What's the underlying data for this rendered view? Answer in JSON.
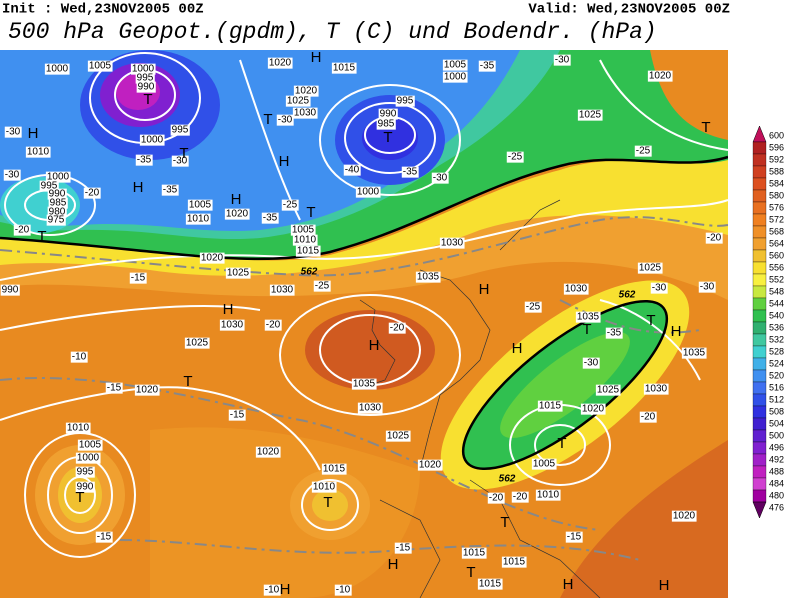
{
  "header": {
    "init": "Init : Wed,23NOV2005 00Z",
    "valid": "Valid: Wed,23NOV2005 00Z",
    "title": "500 hPa Geopot.(gpdm), T (C) und Bodendr. (hPa)"
  },
  "colorbar": {
    "levels": [
      600,
      596,
      592,
      588,
      584,
      580,
      576,
      572,
      568,
      564,
      560,
      556,
      552,
      548,
      544,
      540,
      536,
      532,
      528,
      524,
      520,
      516,
      512,
      508,
      504,
      500,
      496,
      492,
      488,
      484,
      480,
      476
    ],
    "colors": [
      "#c0105a",
      "#b02020",
      "#c03020",
      "#d04020",
      "#dc5020",
      "#e06020",
      "#e87020",
      "#f08020",
      "#f09028",
      "#f0a030",
      "#f0c030",
      "#f8e030",
      "#f8f040",
      "#c8e840",
      "#60d040",
      "#30c050",
      "#30b070",
      "#40c8a0",
      "#40d0d0",
      "#40b0e8",
      "#4090f0",
      "#4070f0",
      "#3050e8",
      "#3030e0",
      "#4020d0",
      "#6020d0",
      "#8020d0",
      "#a020c8",
      "#c020c0",
      "#d040d0",
      "#a000a0",
      "#600060"
    ]
  },
  "isobar_labels": [
    "1000",
    "1005",
    "1000",
    "995",
    "990",
    "1020",
    "1015",
    "1005",
    "1000",
    "1020",
    "1020",
    "1025",
    "1030",
    "990",
    "995",
    "985",
    "1025",
    "995",
    "1000",
    "1010",
    "1000",
    "995",
    "990",
    "985",
    "980",
    "975",
    "1005",
    "1010",
    "1020",
    "1000",
    "1005",
    "1010",
    "1015",
    "1020",
    "1025",
    "1030",
    "1035",
    "1030",
    "990",
    "1030",
    "1030",
    "1035",
    "1035",
    "1025",
    "1020",
    "1035",
    "1030",
    "1025",
    "1030",
    "1015",
    "1020",
    "1025",
    "1020",
    "1020",
    "1010",
    "1005",
    "1000",
    "995",
    "990",
    "1015",
    "1010",
    "1005",
    "1010",
    "1025",
    "1020",
    "1015",
    "1015",
    "1015"
  ],
  "temperature_labels": [
    "-30",
    "-30",
    "-20",
    "-20",
    "-35",
    "-30",
    "-35",
    "-40",
    "-35",
    "-30",
    "-25",
    "-25",
    "-30",
    "-35",
    "-30",
    "-35",
    "-25",
    "-20",
    "-25",
    "-15",
    "-20",
    "-20",
    "-25",
    "-35",
    "-30",
    "-30",
    "-30",
    "-10",
    "-15",
    "-15",
    "-20",
    "-20",
    "-20",
    "-15",
    "-15",
    "-15",
    "-10",
    "-10"
  ],
  "contour_labels": [
    "562",
    "562",
    "562"
  ],
  "pressure_centers": [
    "H",
    "T",
    "T",
    "H",
    "T",
    "H",
    "T",
    "H",
    "H",
    "T",
    "T",
    "H",
    "H",
    "H",
    "T",
    "H",
    "T",
    "T",
    "H",
    "T",
    "T",
    "T",
    "T",
    "T",
    "H",
    "T",
    "H",
    "H",
    "H"
  ]
}
